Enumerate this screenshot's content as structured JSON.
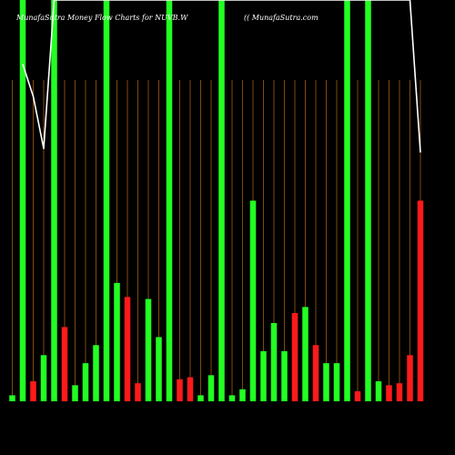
{
  "header": {
    "title": "MunafaSutra Money Flow Charts for NUVB.W",
    "site": "(( MunafaSutra.com"
  },
  "colors": {
    "background": "#000000",
    "up": "#22ff22",
    "down": "#ff1a1a",
    "grid": "#b86a12",
    "line": "#ffffff",
    "text": "#ffffff"
  },
  "chart_data": {
    "type": "bar",
    "grid": true,
    "ylim": [
      0,
      100
    ],
    "values": [
      1.5,
      100,
      5,
      11.5,
      100,
      18.5,
      4,
      9.5,
      14,
      100,
      29.5,
      26,
      4.5,
      25.5,
      16,
      100,
      5.5,
      6,
      1.5,
      6.5,
      100,
      1.5,
      3,
      50,
      12.5,
      19.5,
      12.5,
      22,
      23.5,
      14,
      9.5,
      9.5,
      100,
      2.5,
      100,
      5,
      4,
      4.5,
      11.5,
      50
    ],
    "directions": [
      "up",
      "up",
      "down",
      "up",
      "up",
      "down",
      "up",
      "up",
      "up",
      "up",
      "up",
      "down",
      "down",
      "up",
      "up",
      "up",
      "down",
      "down",
      "up",
      "up",
      "up",
      "up",
      "up",
      "up",
      "up",
      "up",
      "up",
      "down",
      "up",
      "down",
      "up",
      "up",
      "up",
      "down",
      "up",
      "up",
      "down",
      "down",
      "down",
      "down"
    ],
    "line_values": [
      null,
      84,
      76,
      63,
      100,
      100,
      100,
      100,
      100,
      100,
      100,
      100,
      100,
      100,
      100,
      100,
      100,
      100,
      100,
      100,
      100,
      100,
      100,
      100,
      100,
      100,
      100,
      100,
      100,
      100,
      100,
      100,
      100,
      100,
      100,
      100,
      100,
      100,
      100,
      62
    ]
  }
}
